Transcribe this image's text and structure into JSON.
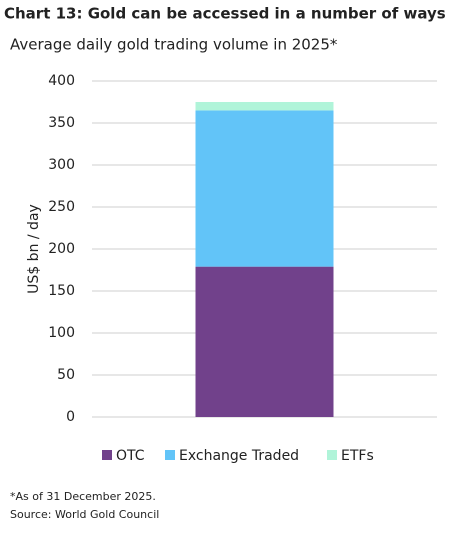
{
  "chart_data": {
    "type": "stacked_bar",
    "title": "Chart 13: Gold can be accessed in a number of ways",
    "subtitle": "Average daily gold trading volume in 2025*",
    "y_label": "US$ bn / day",
    "categories": [
      null
    ],
    "series": [
      {
        "name": "OTC",
        "color": "#71418b",
        "values": [
          179
        ]
      },
      {
        "name": "Exchange Traded",
        "color": "#62c4f8",
        "values": [
          186
        ]
      },
      {
        "name": "ETFs",
        "color": "#b0f4d9",
        "values": [
          10
        ]
      }
    ],
    "ylim": [
      0,
      400
    ],
    "yticks": [
      0,
      50,
      100,
      150,
      200,
      250,
      300,
      350,
      400
    ],
    "grid": true,
    "notes": [
      "*As of 31 December 2025.",
      "Source: World Gold Council"
    ]
  }
}
